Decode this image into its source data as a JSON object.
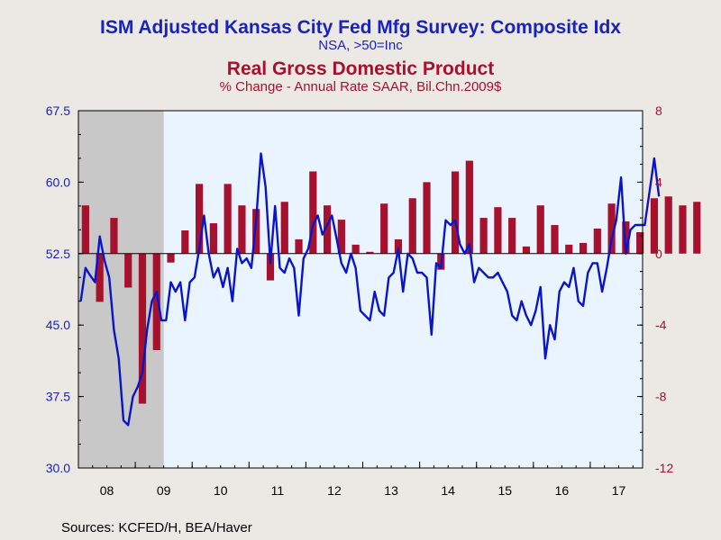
{
  "chart_data": {
    "type": "bar+line",
    "title": "ISM Adjusted Kansas City Fed Mfg Survey: Composite Idx",
    "title_sub": "NSA, >50=Inc",
    "title2": "Real Gross Domestic Product",
    "title2_sub": "% Change - Annual Rate     SAAR, Bil.Chn.2009$",
    "source": "Sources:  KCFED/H, BEA/Haver",
    "recession_shading": {
      "from": 2008.0,
      "to": 2009.5
    },
    "left_axis": {
      "min": 30,
      "max": 67.5,
      "ticks": [
        "30.0",
        "37.5",
        "45.0",
        "52.5",
        "60.0",
        "67.5"
      ],
      "color": "#1a23b8"
    },
    "right_axis": {
      "min": -12,
      "max": 8,
      "ticks": [
        "-12",
        "-8",
        "-4",
        "0",
        "4",
        "8"
      ],
      "color": "#a6122e"
    },
    "x_labels": [
      "08",
      "09",
      "10",
      "11",
      "12",
      "13",
      "14",
      "15",
      "16",
      "17"
    ],
    "x_range": [
      2008.0,
      2017.92
    ],
    "colors": {
      "line": "#0b15c8",
      "bars": "#a6122e",
      "plot_bg": "#e9f4ff",
      "recession": "#c8c8c8"
    },
    "series": [
      {
        "name": "ISM Adjusted Kansas City Fed Mfg Survey: Composite Idx",
        "axis": "left",
        "kind": "line",
        "x_start": 2008.0,
        "step": 0.08333,
        "values": [
          47.5,
          51.0,
          50.2,
          49.5,
          54.3,
          51.8,
          50.0,
          44.5,
          41.5,
          35.0,
          34.5,
          37.5,
          38.5,
          40.0,
          44.5,
          47.5,
          48.5,
          45.5,
          45.5,
          49.5,
          48.5,
          49.5,
          45.5,
          49.5,
          50.0,
          53.0,
          56.5,
          52.5,
          50.0,
          51.0,
          49.0,
          51.0,
          47.5,
          53.0,
          51.5,
          52.0,
          51.0,
          56.0,
          63.0,
          59.5,
          51.5,
          57.5,
          51.0,
          50.5,
          52.0,
          51.0,
          46.0,
          52.0,
          53.0,
          55.5,
          56.5,
          54.5,
          55.5,
          56.5,
          54.0,
          51.5,
          50.5,
          52.5,
          51.0,
          46.5,
          46.0,
          45.5,
          48.5,
          46.5,
          46.0,
          50.0,
          50.5,
          53.0,
          48.5,
          52.5,
          52.0,
          50.5,
          50.5,
          50.0,
          44.0,
          51.5,
          51.0,
          56.0,
          55.5,
          56.0,
          53.5,
          52.5,
          53.5,
          49.5,
          51.0,
          50.5,
          50.0,
          50.0,
          50.5,
          49.5,
          48.5,
          46.0,
          45.5,
          47.5,
          46.0,
          45.0,
          46.5,
          49.0,
          41.5,
          45.0,
          43.5,
          48.5,
          49.5,
          49.0,
          51.0,
          47.5,
          47.0,
          50.5,
          51.5,
          51.5,
          48.5,
          51.0,
          54.0,
          56.0,
          60.5,
          52.5,
          55.0,
          55.5,
          55.5,
          55.5,
          59.0,
          62.5,
          58.5
        ]
      },
      {
        "name": "Real Gross Domestic Product",
        "axis": "right",
        "kind": "bar",
        "x_start": 2008.0,
        "step": 0.25,
        "values": [
          2.7,
          -2.7,
          2.0,
          -1.9,
          -8.4,
          -5.4,
          -0.5,
          1.3,
          3.9,
          1.7,
          3.9,
          2.7,
          2.5,
          -1.5,
          2.9,
          0.8,
          4.6,
          2.7,
          1.9,
          0.5,
          0.1,
          2.8,
          0.8,
          3.1,
          4.0,
          -0.9,
          4.6,
          5.2,
          2.0,
          2.6,
          2.0,
          0.4,
          2.7,
          1.6,
          0.5,
          0.6,
          1.4,
          2.8,
          1.8,
          1.2,
          3.1,
          3.2,
          2.7,
          2.9
        ]
      }
    ]
  }
}
